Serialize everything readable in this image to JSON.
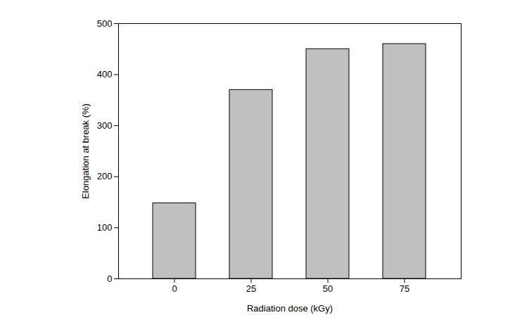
{
  "chart_data": {
    "type": "bar",
    "x_label": "Radiation dose (kGy)",
    "y_label": "Elongation at break (%)",
    "categories": [
      "0",
      "25",
      "50",
      "75"
    ],
    "values": [
      148,
      370,
      450,
      460
    ],
    "color": "#c0c0c0",
    "ylim": [
      0,
      500
    ],
    "yticks": [
      0,
      100,
      200,
      300,
      400,
      500
    ],
    "grid": false
  }
}
